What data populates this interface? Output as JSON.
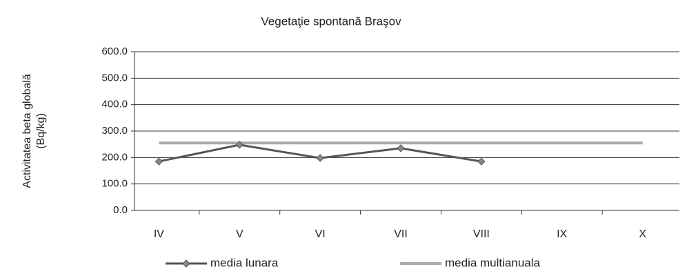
{
  "chart_data": {
    "type": "line",
    "title": "Vegetaţie spontană Braşov",
    "ylabel": [
      "Activitatea  beta globală",
      "(Bq/kg)"
    ],
    "categories": [
      "IV",
      "V",
      "VI",
      "VII",
      "VIII",
      "IX",
      "X"
    ],
    "series": [
      {
        "name": "media lunara",
        "color": "#555555",
        "values": [
          185,
          248,
          198,
          235,
          185,
          null,
          null
        ]
      },
      {
        "name": "media multianuala",
        "color": "#aaaaaa",
        "values": [
          255,
          255,
          255,
          255,
          255,
          255,
          255
        ]
      }
    ],
    "ylim": [
      0,
      600
    ],
    "yticks": [
      {
        "value": 0,
        "label": "0.0"
      },
      {
        "value": 100,
        "label": "100.0"
      },
      {
        "value": 200,
        "label": "200.0"
      },
      {
        "value": 300,
        "label": "300.0"
      },
      {
        "value": 400,
        "label": "400.0"
      },
      {
        "value": 500,
        "label": "500.0"
      },
      {
        "value": 600,
        "label": "600.0"
      }
    ],
    "grid": true
  }
}
